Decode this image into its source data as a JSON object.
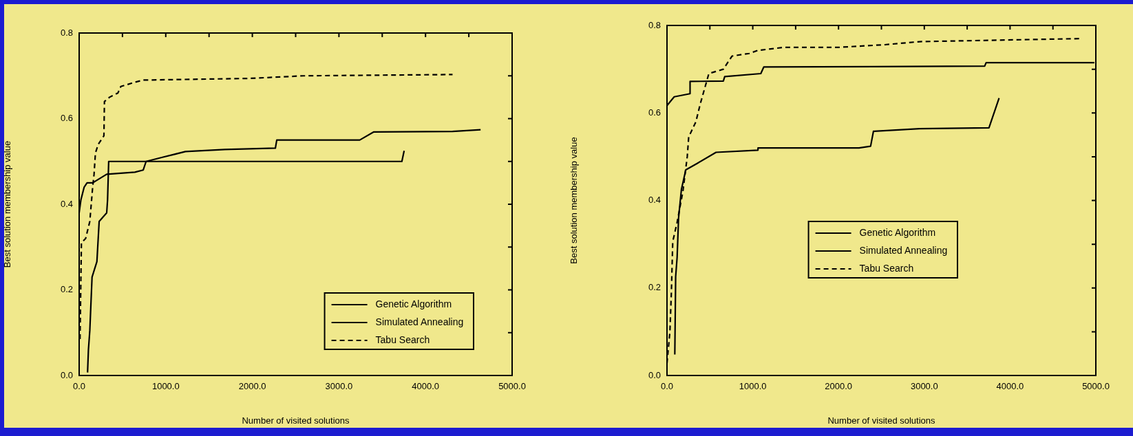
{
  "chart_data": [
    {
      "type": "line",
      "xlabel": "Number of visited solutions",
      "ylabel": "Best solution membership value",
      "legend": "bottom right",
      "grid": false,
      "marker": "none",
      "xlim": [
        0,
        5000
      ],
      "xticks": [
        {
          "value": 0,
          "label": "0.0"
        },
        {
          "value": 500,
          "label": null
        },
        {
          "value": 1000,
          "label": "1000.0"
        },
        {
          "value": 1500,
          "label": null
        },
        {
          "value": 2000,
          "label": "2000.0"
        },
        {
          "value": 2500,
          "label": null
        },
        {
          "value": 3000,
          "label": "3000.0"
        },
        {
          "value": 3500,
          "label": null
        },
        {
          "value": 4000,
          "label": "4000.0"
        },
        {
          "value": 4500,
          "label": null
        },
        {
          "value": 5000,
          "label": "5000.0"
        }
      ],
      "ylim": [
        0,
        0.8
      ],
      "yticks": [
        {
          "value": 0,
          "label": "0.0"
        },
        {
          "value": 0.1,
          "label": null
        },
        {
          "value": 0.2,
          "label": "0.2"
        },
        {
          "value": 0.3,
          "label": null
        },
        {
          "value": 0.4,
          "label": "0.4"
        },
        {
          "value": 0.5,
          "label": null
        },
        {
          "value": 0.6,
          "label": "0.6"
        },
        {
          "value": 0.7,
          "label": null
        },
        {
          "value": 0.8,
          "label": "0.8"
        }
      ],
      "series": [
        {
          "name": "Genetic Algorithm",
          "color": "#000000",
          "line_style": "solid",
          "x": [
            0,
            20,
            58,
            91,
            156,
            318,
            643,
            740,
            773,
            968,
            1227,
            1682,
            2266,
            2282,
            3240,
            3403,
            4312,
            4636
          ],
          "values": [
            0.38,
            0.41,
            0.44,
            0.45,
            0.45,
            0.47,
            0.475,
            0.48,
            0.5,
            0.51,
            0.523,
            0.528,
            0.531,
            0.55,
            0.55,
            0.569,
            0.57,
            0.574
          ]
        },
        {
          "name": "Simulated Annealing",
          "color": "#000000",
          "line_style": "solid",
          "x": [
            97,
            107,
            123,
            149,
            205,
            231,
            318,
            328,
            341,
            3727,
            3753
          ],
          "values": [
            0.007,
            0.06,
            0.105,
            0.23,
            0.266,
            0.36,
            0.38,
            0.41,
            0.5,
            0.5,
            0.525
          ]
        },
        {
          "name": "Tabu Search",
          "color": "#000000",
          "line_style": "dashed",
          "x": [
            10,
            26,
            75,
            123,
            156,
            172,
            188,
            221,
            286,
            292,
            351,
            448,
            481,
            643,
            740,
            1974,
            2590,
            4312
          ],
          "values": [
            0.085,
            0.31,
            0.32,
            0.36,
            0.44,
            0.47,
            0.52,
            0.54,
            0.56,
            0.64,
            0.65,
            0.66,
            0.675,
            0.685,
            0.69,
            0.694,
            0.7,
            0.703
          ]
        }
      ]
    },
    {
      "type": "line",
      "xlabel": "Number of visited solutions",
      "ylabel": "Best solution membership value",
      "legend": "center",
      "grid": false,
      "marker": "none",
      "xlim": [
        0,
        5000
      ],
      "xticks": [
        {
          "value": 0,
          "label": "0.0"
        },
        {
          "value": 500,
          "label": null
        },
        {
          "value": 1000,
          "label": "1000.0"
        },
        {
          "value": 1500,
          "label": null
        },
        {
          "value": 2000,
          "label": "2000.0"
        },
        {
          "value": 2500,
          "label": null
        },
        {
          "value": 3000,
          "label": "3000.0"
        },
        {
          "value": 3500,
          "label": null
        },
        {
          "value": 4000,
          "label": "4000.0"
        },
        {
          "value": 4500,
          "label": null
        },
        {
          "value": 5000,
          "label": "5000.0"
        }
      ],
      "ylim": [
        0,
        0.8
      ],
      "yticks": [
        {
          "value": 0,
          "label": "0.0"
        },
        {
          "value": 0.1,
          "label": null
        },
        {
          "value": 0.2,
          "label": "0.2"
        },
        {
          "value": 0.3,
          "label": null
        },
        {
          "value": 0.4,
          "label": "0.4"
        },
        {
          "value": 0.5,
          "label": null
        },
        {
          "value": 0.6,
          "label": "0.6"
        },
        {
          "value": 0.7,
          "label": null
        },
        {
          "value": 0.8,
          "label": "0.8"
        }
      ],
      "series": [
        {
          "name": "Genetic Algorithm",
          "color": "#000000",
          "line_style": "solid",
          "x": [
            0,
            84,
            269,
            269,
            657,
            673,
            1094,
            1128,
            3704,
            3721,
            4983
          ],
          "values": [
            0.617,
            0.637,
            0.644,
            0.672,
            0.673,
            0.683,
            0.69,
            0.705,
            0.707,
            0.715,
            0.715
          ]
        },
        {
          "name": "Simulated Annealing",
          "color": "#000000",
          "line_style": "solid",
          "x": [
            91,
            101,
            118,
            135,
            168,
            219,
            354,
            572,
            1061,
            1061,
            2239,
            2374,
            2407,
            2946,
            3754,
            3872
          ],
          "values": [
            0.048,
            0.226,
            0.27,
            0.36,
            0.425,
            0.47,
            0.485,
            0.51,
            0.515,
            0.52,
            0.52,
            0.524,
            0.558,
            0.564,
            0.566,
            0.634
          ]
        },
        {
          "name": "Tabu Search",
          "color": "#000000",
          "line_style": "dashed",
          "x": [
            0,
            34,
            51,
            67,
            118,
            185,
            236,
            253,
            337,
            387,
            488,
            657,
            758,
            960,
            1061,
            1364,
            2003,
            2542,
            2946,
            4832
          ],
          "values": [
            0.028,
            0.1,
            0.19,
            0.306,
            0.35,
            0.42,
            0.5,
            0.545,
            0.58,
            0.62,
            0.69,
            0.7,
            0.73,
            0.736,
            0.743,
            0.75,
            0.75,
            0.756,
            0.763,
            0.77
          ]
        }
      ]
    }
  ]
}
